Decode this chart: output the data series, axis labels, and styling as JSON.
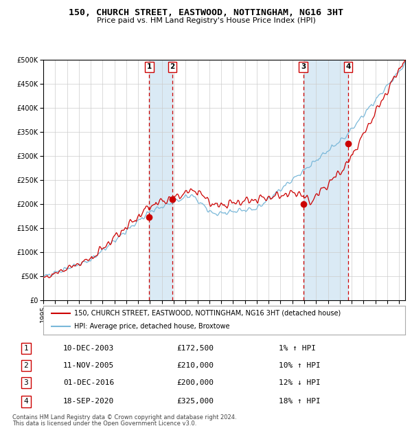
{
  "title": "150, CHURCH STREET, EASTWOOD, NOTTINGHAM, NG16 3HT",
  "subtitle": "Price paid vs. HM Land Registry's House Price Index (HPI)",
  "legend_line1": "150, CHURCH STREET, EASTWOOD, NOTTINGHAM, NG16 3HT (detached house)",
  "legend_line2": "HPI: Average price, detached house, Broxtowe",
  "footer1": "Contains HM Land Registry data © Crown copyright and database right 2024.",
  "footer2": "This data is licensed under the Open Government Licence v3.0.",
  "transactions": [
    {
      "num": 1,
      "date_str": "10-DEC-2003",
      "date_x": 2003.94,
      "price": 172500,
      "pct": "1%",
      "dir": "↑"
    },
    {
      "num": 2,
      "date_str": "11-NOV-2005",
      "date_x": 2005.87,
      "price": 210000,
      "pct": "10%",
      "dir": "↑"
    },
    {
      "num": 3,
      "date_str": "01-DEC-2016",
      "date_x": 2016.92,
      "price": 200000,
      "pct": "12%",
      "dir": "↓"
    },
    {
      "num": 4,
      "date_str": "18-SEP-2020",
      "date_x": 2020.71,
      "price": 325000,
      "pct": "18%",
      "dir": "↑"
    }
  ],
  "hpi_color": "#7ab8d9",
  "price_color": "#cc0000",
  "shade_color": "#daeaf5",
  "vline_color": "#cc0000",
  "marker_color": "#cc0000",
  "ylim": [
    0,
    500000
  ],
  "xlim": [
    1995.0,
    2025.5
  ],
  "yticks": [
    0,
    50000,
    100000,
    150000,
    200000,
    250000,
    300000,
    350000,
    400000,
    450000,
    500000
  ],
  "xticks": [
    1995,
    1996,
    1997,
    1998,
    1999,
    2000,
    2001,
    2002,
    2003,
    2004,
    2005,
    2006,
    2007,
    2008,
    2009,
    2010,
    2011,
    2012,
    2013,
    2014,
    2015,
    2016,
    2017,
    2018,
    2019,
    2020,
    2021,
    2022,
    2023,
    2024,
    2025
  ],
  "background_color": "#ffffff",
  "grid_color": "#cccccc",
  "table_rows": [
    {
      "num": "1",
      "date": "10-DEC-2003",
      "price": "£172,500",
      "pct": "1% ↑ HPI"
    },
    {
      "num": "2",
      "date": "11-NOV-2005",
      "price": "£210,000",
      "pct": "10% ↑ HPI"
    },
    {
      "num": "3",
      "date": "01-DEC-2016",
      "price": "£200,000",
      "pct": "12% ↓ HPI"
    },
    {
      "num": "4",
      "date": "18-SEP-2020",
      "price": "£325,000",
      "pct": "18% ↑ HPI"
    }
  ]
}
